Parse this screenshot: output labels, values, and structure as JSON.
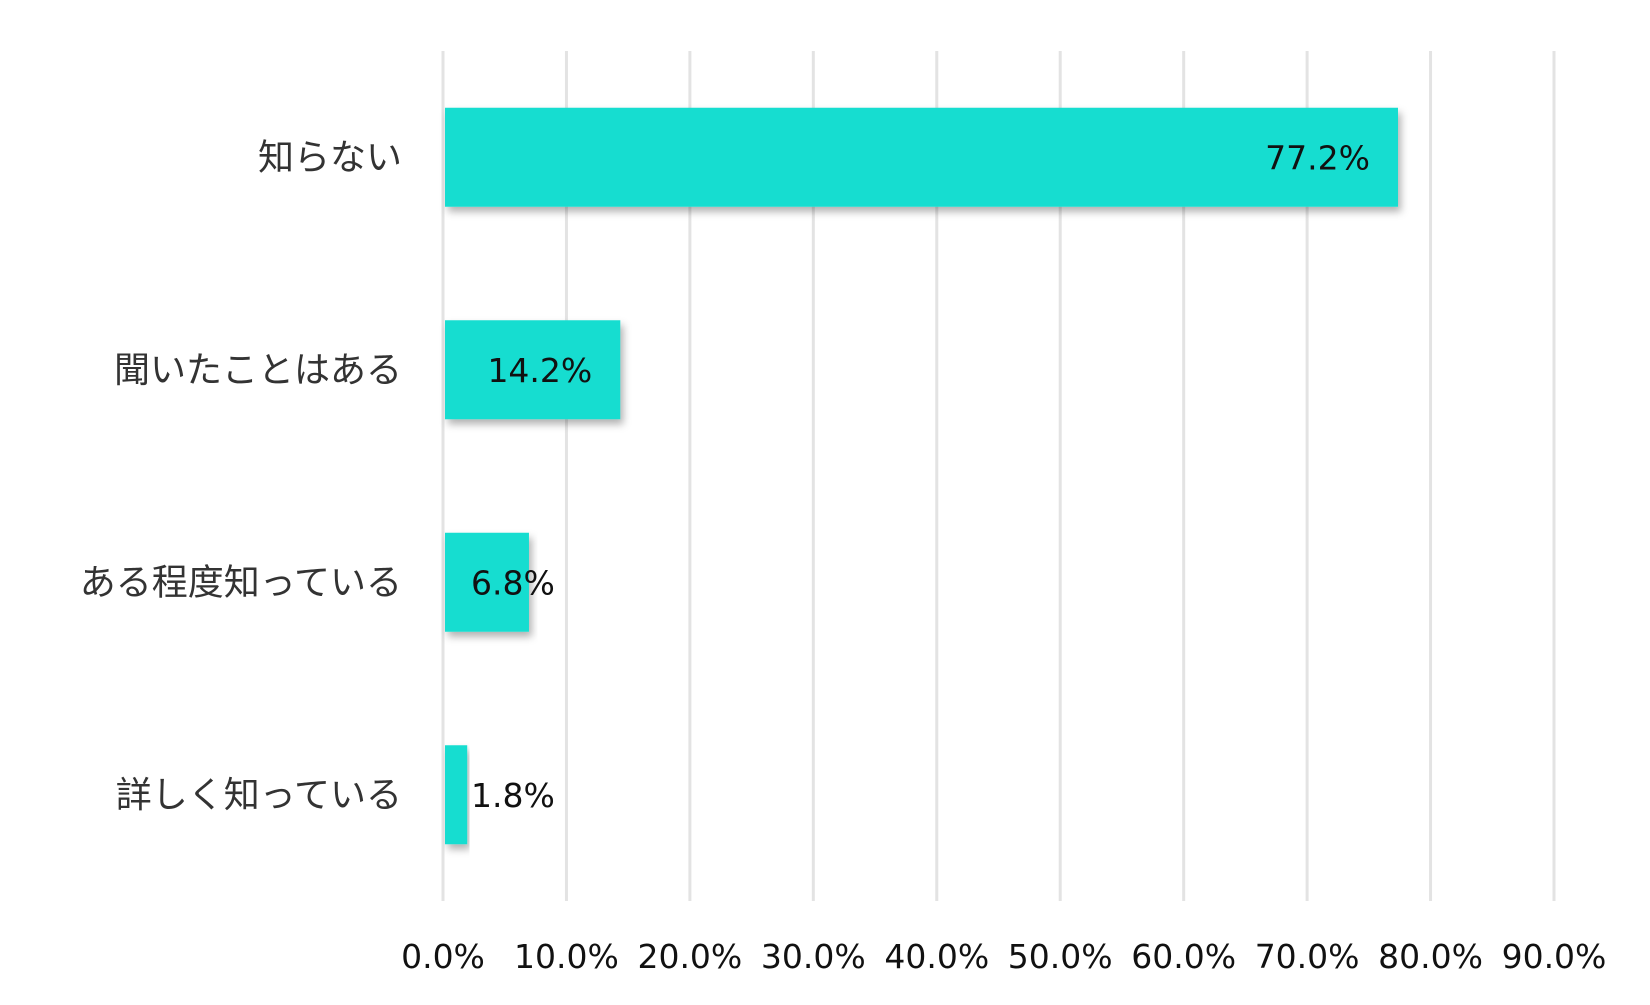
{
  "chart_data": {
    "type": "bar",
    "orientation": "horizontal",
    "categories": [
      "知らない",
      "聞いたことはある",
      "ある程度知っている",
      "詳しく知っている"
    ],
    "values": [
      77.2,
      14.2,
      6.8,
      1.8
    ],
    "data_labels": [
      "77.2%",
      "14.2%",
      "6.8%",
      "1.8%"
    ],
    "xlim": [
      0,
      90
    ],
    "x_ticks": [
      "0.0%",
      "10.0%",
      "20.0%",
      "30.0%",
      "40.0%",
      "50.0%",
      "60.0%",
      "70.0%",
      "80.0%",
      "90.0%"
    ],
    "grid": "vertical",
    "legend": "none",
    "title": "",
    "xlabel": "",
    "ylabel": "",
    "colors": {
      "bar": "#14DDD0",
      "grid": "#E3E3E3"
    }
  }
}
